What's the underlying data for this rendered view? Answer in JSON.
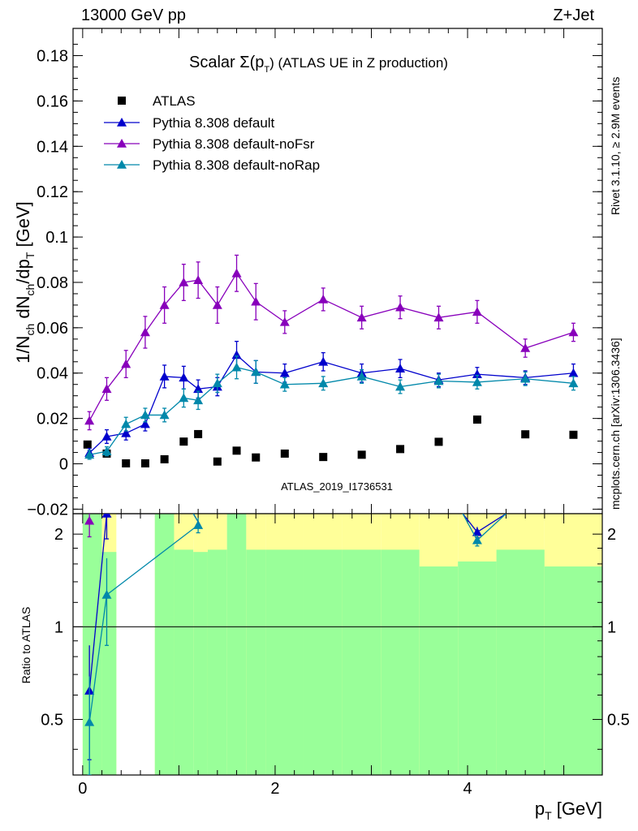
{
  "header": {
    "left": "13000 GeV pp",
    "right": "Z+Jet"
  },
  "side": {
    "rivet": "Rivet 3.1.10, ≥ 2.9M events",
    "mcplots": "mcplots.cern.ch [arXiv:1306.3436]"
  },
  "watermark": "ATLAS_2019_I1736531",
  "main_title": {
    "prefix": "Scalar Σ(p",
    "sub": "T",
    "suffix": ") (ATLAS UE in Z production)"
  },
  "colors": {
    "atlas": "#000000",
    "default": "#0000cc",
    "noFsr": "#8800bb",
    "noRap": "#0088aa",
    "band_green": "#99ff99",
    "band_yellow": "#ffff99"
  },
  "chart_data": [
    {
      "type": "scatter",
      "title": "Scalar Σ(pT) (ATLAS UE in Z production)",
      "xlabel": "pT [GeV]",
      "ylabel": "1/Nch dNch/dpT [GeV]",
      "xlim": [
        -0.1,
        5.4
      ],
      "ylim": [
        -0.022,
        0.192
      ],
      "yticks": [
        "−0.02",
        "0",
        "0.02",
        "0.04",
        "0.06",
        "0.08",
        "0.1",
        "0.12",
        "0.14",
        "0.16",
        "0.18"
      ],
      "legend_position": "top-left",
      "series": [
        {
          "name": "ATLAS",
          "marker": "square",
          "color": "#000000",
          "x": [
            0.05,
            0.25,
            0.45,
            0.65,
            0.85,
            1.05,
            1.2,
            1.4,
            1.6,
            1.8,
            2.1,
            2.5,
            2.9,
            3.3,
            3.7,
            4.1,
            4.6,
            5.1
          ],
          "y": [
            0.0085,
            0.0045,
            0.0002,
            0.0002,
            0.002,
            0.0098,
            0.0131,
            0.001,
            0.0058,
            0.0028,
            0.0045,
            0.003,
            0.004,
            0.0065,
            0.0097,
            0.0195,
            0.013,
            0.0128
          ]
        },
        {
          "name": "Pythia 8.308 default",
          "marker": "triangle",
          "color": "#0000cc",
          "x": [
            0.07,
            0.25,
            0.45,
            0.65,
            0.85,
            1.05,
            1.2,
            1.4,
            1.6,
            1.8,
            2.1,
            2.5,
            2.9,
            3.3,
            3.7,
            4.1,
            4.6,
            5.1
          ],
          "y": [
            0.0048,
            0.012,
            0.0135,
            0.0175,
            0.0385,
            0.038,
            0.033,
            0.034,
            0.048,
            0.0405,
            0.04,
            0.045,
            0.04,
            0.042,
            0.037,
            0.0395,
            0.038,
            0.04
          ],
          "err": [
            0.002,
            0.003,
            0.003,
            0.003,
            0.005,
            0.005,
            0.004,
            0.004,
            0.006,
            0.005,
            0.004,
            0.004,
            0.004,
            0.004,
            0.003,
            0.003,
            0.003,
            0.004
          ]
        },
        {
          "name": "Pythia 8.308 default-noFsr",
          "marker": "triangle",
          "color": "#8800bb",
          "x": [
            0.07,
            0.25,
            0.45,
            0.65,
            0.85,
            1.05,
            1.2,
            1.4,
            1.6,
            1.8,
            2.1,
            2.5,
            2.9,
            3.3,
            3.7,
            4.1,
            4.6,
            5.1
          ],
          "y": [
            0.019,
            0.033,
            0.044,
            0.058,
            0.07,
            0.08,
            0.081,
            0.07,
            0.084,
            0.0715,
            0.0625,
            0.0725,
            0.0645,
            0.069,
            0.0645,
            0.067,
            0.051,
            0.058
          ],
          "err": [
            0.004,
            0.005,
            0.006,
            0.007,
            0.008,
            0.008,
            0.008,
            0.008,
            0.008,
            0.008,
            0.005,
            0.005,
            0.005,
            0.005,
            0.005,
            0.005,
            0.004,
            0.004
          ]
        },
        {
          "name": "Pythia 8.308 default-noRap",
          "marker": "triangle",
          "color": "#0088aa",
          "x": [
            0.07,
            0.25,
            0.45,
            0.65,
            0.85,
            1.05,
            1.2,
            1.4,
            1.6,
            1.8,
            2.1,
            2.5,
            2.9,
            3.3,
            3.7,
            4.1,
            4.6,
            5.1
          ],
          "y": [
            0.004,
            0.0055,
            0.0175,
            0.0215,
            0.0215,
            0.029,
            0.028,
            0.0355,
            0.0425,
            0.0405,
            0.035,
            0.0355,
            0.0385,
            0.034,
            0.0365,
            0.036,
            0.0375,
            0.0355
          ],
          "err": [
            0.002,
            0.002,
            0.003,
            0.003,
            0.003,
            0.004,
            0.004,
            0.004,
            0.005,
            0.005,
            0.003,
            0.003,
            0.003,
            0.003,
            0.003,
            0.003,
            0.003,
            0.003
          ]
        }
      ]
    },
    {
      "type": "scatter",
      "ylabel": "Ratio to ATLAS",
      "xlabel": "pT [GeV]",
      "xlim": [
        -0.1,
        5.4
      ],
      "ylim": [
        0.33,
        2.33
      ],
      "xticks": [
        "0",
        "2",
        "4"
      ],
      "yticks": [
        "0.5",
        "1",
        "2"
      ],
      "bands": {
        "edges": [
          0.0,
          0.2,
          0.35,
          0.75,
          0.95,
          1.15,
          1.3,
          1.5,
          1.7,
          1.9,
          2.3,
          2.7,
          3.1,
          3.5,
          3.9,
          4.3,
          4.8,
          5.4
        ],
        "green_lo": [
          0.33,
          0.33,
          null,
          0.33,
          0.33,
          0.33,
          0.33,
          0.33,
          0.33,
          0.33,
          0.33,
          0.33,
          0.33,
          0.33,
          0.33,
          0.33,
          0.33
        ],
        "green_hi": [
          2.33,
          1.75,
          null,
          2.33,
          1.78,
          1.75,
          1.78,
          2.33,
          1.78,
          1.78,
          1.78,
          1.78,
          1.78,
          1.57,
          1.63,
          1.78,
          1.57
        ],
        "yellow_lo": [
          0.33,
          0.33,
          null,
          0.33,
          0.33,
          0.37,
          0.33,
          0.33,
          0.33,
          0.33,
          0.33,
          0.33,
          0.33,
          0.33,
          0.33,
          0.33,
          0.33
        ],
        "yellow_hi": [
          2.33,
          2.33,
          null,
          2.33,
          2.33,
          2.33,
          2.33,
          2.33,
          2.33,
          2.33,
          2.33,
          2.33,
          2.33,
          2.33,
          2.33,
          2.33,
          2.33
        ]
      },
      "series": [
        {
          "name": "Pythia 8.308 default",
          "color": "#0000cc",
          "x": [
            0.07,
            0.25,
            4.1
          ],
          "y": [
            0.62,
            2.33,
            2.03
          ],
          "err": [
            0.25,
            0.4,
            0.08
          ]
        },
        {
          "name": "Pythia 8.308 default-noFsr",
          "color": "#8800bb",
          "x": [
            0.07
          ],
          "y": [
            2.21
          ],
          "err": [
            0.25
          ]
        },
        {
          "name": "Pythia 8.308 default-noRap",
          "color": "#0088aa",
          "x": [
            0.07,
            0.25,
            1.2,
            4.1
          ],
          "y": [
            0.49,
            1.27,
            2.14,
            1.91
          ],
          "err": [
            0.2,
            0.4,
            0.12,
            0.08
          ]
        }
      ]
    }
  ]
}
